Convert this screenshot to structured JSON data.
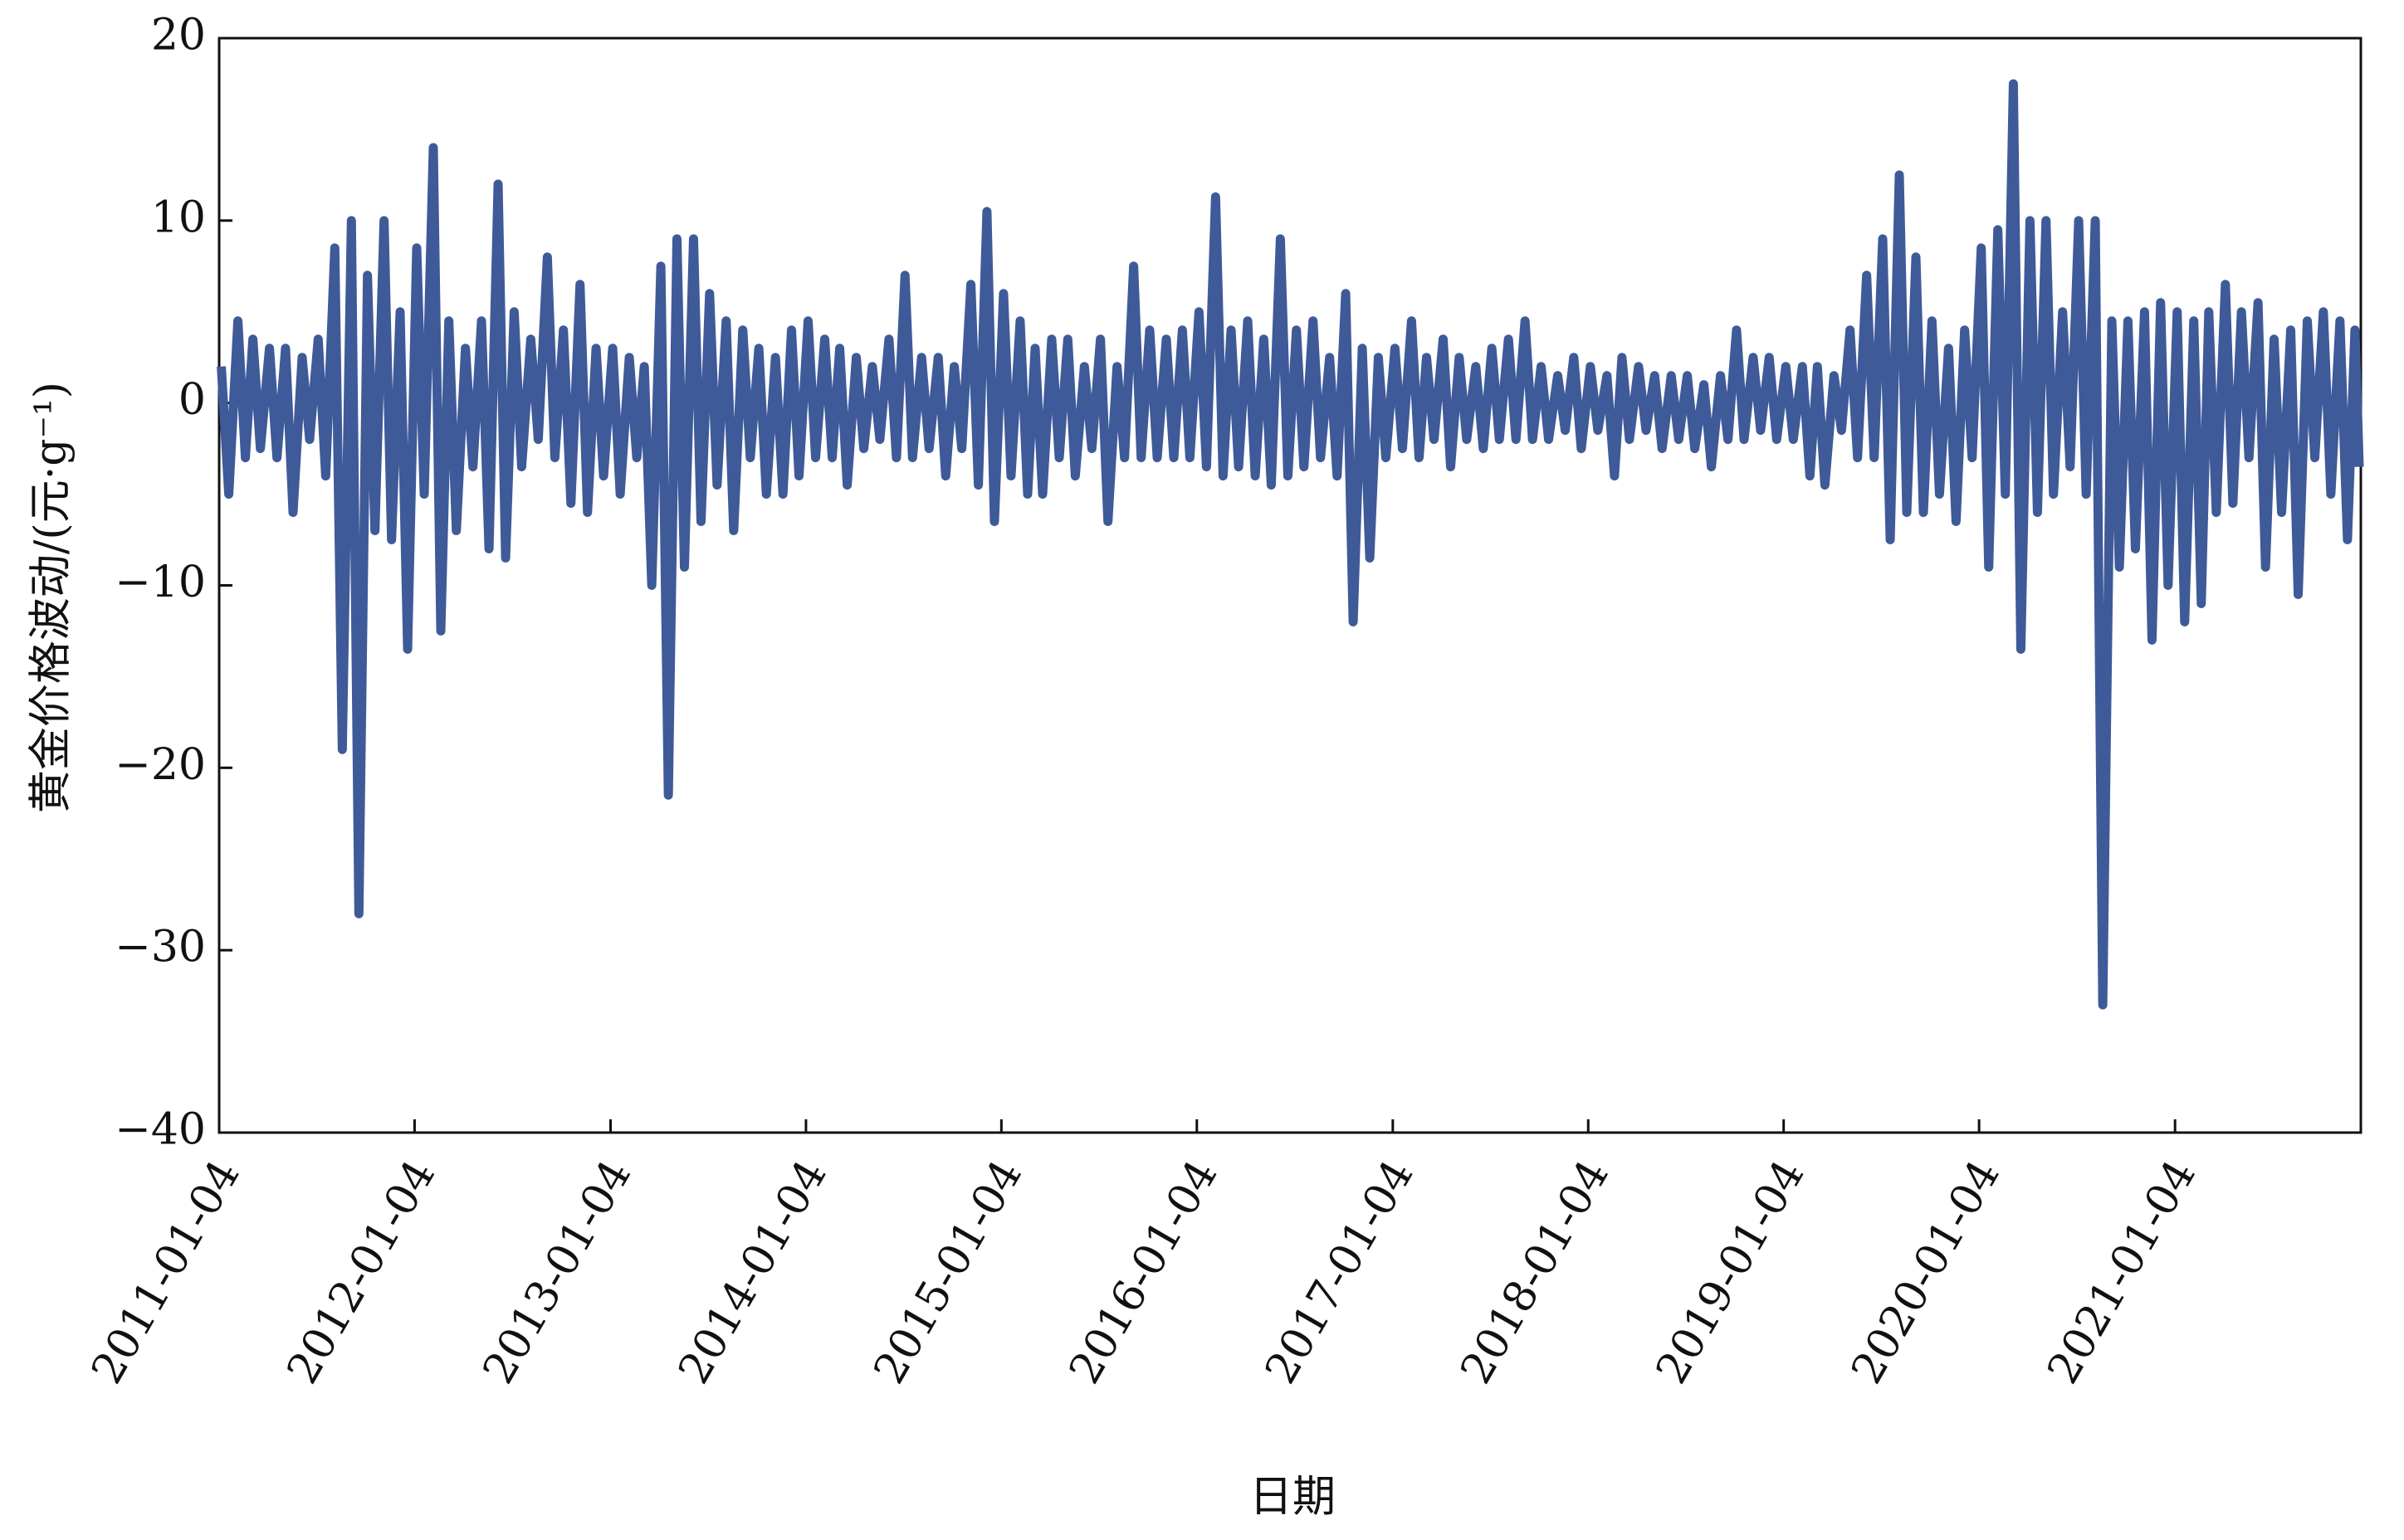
{
  "chart_data": {
    "type": "line",
    "y_label": "黄金价格波动/(元·g⁻¹)",
    "x_label": "日期",
    "xlim": [
      "2011-01-04",
      "2021-12-17"
    ],
    "xticks": [
      "2011-01-04",
      "2012-01-04",
      "2013-01-04",
      "2014-01-04",
      "2015-01-04",
      "2016-01-04",
      "2017-01-04",
      "2018-01-04",
      "2019-01-04",
      "2020-01-04",
      "2021-01-04"
    ],
    "ylim": [
      -40,
      20
    ],
    "yticks": [
      20,
      10,
      0,
      {
        "value": -10,
        "label": "−10"
      },
      {
        "value": -20,
        "label": "−20"
      },
      {
        "value": -30,
        "label": "−30"
      },
      {
        "value": -40,
        "label": "−40"
      }
    ],
    "grid": false,
    "x": [
      "2011-01-08",
      "2011-01-22",
      "2011-02-08",
      "2011-02-22",
      "2011-03-08",
      "2011-03-22",
      "2011-04-08",
      "2011-04-22",
      "2011-05-08",
      "2011-05-22",
      "2011-06-08",
      "2011-06-22",
      "2011-07-08",
      "2011-07-22",
      "2011-08-08",
      "2011-08-22",
      "2011-09-08",
      "2011-09-22",
      "2011-10-08",
      "2011-10-22",
      "2011-11-08",
      "2011-11-22",
      "2011-12-08",
      "2011-12-22",
      "2012-01-08",
      "2012-01-22",
      "2012-02-08",
      "2012-02-22",
      "2012-03-08",
      "2012-03-22",
      "2012-04-08",
      "2012-04-22",
      "2012-05-08",
      "2012-05-22",
      "2012-06-08",
      "2012-06-22",
      "2012-07-08",
      "2012-07-22",
      "2012-08-08",
      "2012-08-22",
      "2012-09-08",
      "2012-09-22",
      "2012-10-08",
      "2012-10-22",
      "2012-11-08",
      "2012-11-22",
      "2012-12-08",
      "2012-12-22",
      "2013-01-08",
      "2013-01-22",
      "2013-02-08",
      "2013-02-22",
      "2013-03-08",
      "2013-03-22",
      "2013-04-08",
      "2013-04-22",
      "2013-05-08",
      "2013-05-22",
      "2013-06-08",
      "2013-06-22",
      "2013-07-08",
      "2013-07-22",
      "2013-08-08",
      "2013-08-22",
      "2013-09-08",
      "2013-09-22",
      "2013-10-08",
      "2013-10-22",
      "2013-11-08",
      "2013-11-22",
      "2013-12-08",
      "2013-12-22",
      "2014-01-08",
      "2014-01-22",
      "2014-02-08",
      "2014-02-22",
      "2014-03-08",
      "2014-03-22",
      "2014-04-08",
      "2014-04-22",
      "2014-05-08",
      "2014-05-22",
      "2014-06-08",
      "2014-06-22",
      "2014-07-08",
      "2014-07-22",
      "2014-08-08",
      "2014-08-22",
      "2014-09-08",
      "2014-09-22",
      "2014-10-08",
      "2014-10-22",
      "2014-11-08",
      "2014-11-22",
      "2014-12-08",
      "2014-12-22",
      "2015-01-08",
      "2015-01-22",
      "2015-02-08",
      "2015-02-22",
      "2015-03-08",
      "2015-03-22",
      "2015-04-08",
      "2015-04-22",
      "2015-05-08",
      "2015-05-22",
      "2015-06-08",
      "2015-06-22",
      "2015-07-08",
      "2015-07-22",
      "2015-08-08",
      "2015-08-22",
      "2015-09-08",
      "2015-09-22",
      "2015-10-08",
      "2015-10-22",
      "2015-11-08",
      "2015-11-22",
      "2015-12-08",
      "2015-12-22",
      "2016-01-08",
      "2016-01-22",
      "2016-02-08",
      "2016-02-22",
      "2016-03-08",
      "2016-03-22",
      "2016-04-08",
      "2016-04-22",
      "2016-05-08",
      "2016-05-22",
      "2016-06-08",
      "2016-06-22",
      "2016-07-08",
      "2016-07-22",
      "2016-08-08",
      "2016-08-22",
      "2016-09-08",
      "2016-09-22",
      "2016-10-08",
      "2016-10-22",
      "2016-11-08",
      "2016-11-22",
      "2016-12-08",
      "2016-12-22",
      "2017-01-08",
      "2017-01-22",
      "2017-02-08",
      "2017-02-22",
      "2017-03-08",
      "2017-03-22",
      "2017-04-08",
      "2017-04-22",
      "2017-05-08",
      "2017-05-22",
      "2017-06-08",
      "2017-06-22",
      "2017-07-08",
      "2017-07-22",
      "2017-08-08",
      "2017-08-22",
      "2017-09-08",
      "2017-09-22",
      "2017-10-08",
      "2017-10-22",
      "2017-11-08",
      "2017-11-22",
      "2017-12-08",
      "2017-12-22",
      "2018-01-08",
      "2018-01-22",
      "2018-02-08",
      "2018-02-22",
      "2018-03-08",
      "2018-03-22",
      "2018-04-08",
      "2018-04-22",
      "2018-05-08",
      "2018-05-22",
      "2018-06-08",
      "2018-06-22",
      "2018-07-08",
      "2018-07-22",
      "2018-08-08",
      "2018-08-22",
      "2018-09-08",
      "2018-09-22",
      "2018-10-08",
      "2018-10-22",
      "2018-11-08",
      "2018-11-22",
      "2018-12-08",
      "2018-12-22",
      "2019-01-08",
      "2019-01-22",
      "2019-02-08",
      "2019-02-22",
      "2019-03-08",
      "2019-03-22",
      "2019-04-08",
      "2019-04-22",
      "2019-05-08",
      "2019-05-22",
      "2019-06-08",
      "2019-06-22",
      "2019-07-08",
      "2019-07-22",
      "2019-08-08",
      "2019-08-22",
      "2019-09-08",
      "2019-09-22",
      "2019-10-08",
      "2019-10-22",
      "2019-11-08",
      "2019-11-22",
      "2019-12-08",
      "2019-12-22",
      "2020-01-08",
      "2020-01-22",
      "2020-02-08",
      "2020-02-22",
      "2020-03-08",
      "2020-03-22",
      "2020-04-08",
      "2020-04-22",
      "2020-05-08",
      "2020-05-22",
      "2020-06-08",
      "2020-06-22",
      "2020-07-08",
      "2020-07-22",
      "2020-08-08",
      "2020-08-22",
      "2020-09-08",
      "2020-09-22",
      "2020-10-08",
      "2020-10-22",
      "2020-11-08",
      "2020-11-22",
      "2020-12-08",
      "2020-12-22",
      "2021-01-08",
      "2021-01-22",
      "2021-02-08",
      "2021-02-22",
      "2021-03-08",
      "2021-03-22",
      "2021-04-08",
      "2021-04-22",
      "2021-05-08",
      "2021-05-22",
      "2021-06-08",
      "2021-06-22",
      "2021-07-08",
      "2021-07-22",
      "2021-08-08",
      "2021-08-22",
      "2021-09-08",
      "2021-09-22",
      "2021-10-08",
      "2021-10-22",
      "2021-11-08",
      "2021-11-22",
      "2021-12-06",
      "2021-12-14"
    ],
    "series": [
      {
        "color": "#3f5a98",
        "values": [
          2,
          -5,
          4.5,
          -3,
          3.5,
          -2.5,
          3,
          -3,
          3,
          -6,
          2.5,
          -2,
          3.5,
          -4,
          8.5,
          -19,
          10,
          -28,
          7,
          -7,
          10,
          -7.5,
          5,
          -13.5,
          8.5,
          -5,
          14,
          -12.5,
          4.5,
          -7,
          3,
          -3.5,
          4.5,
          -8,
          12,
          -8.5,
          5,
          -3.5,
          3.5,
          -2,
          8,
          -3,
          4,
          -5.5,
          6.5,
          -6,
          3,
          -4,
          3,
          -5,
          2.5,
          -3,
          2,
          -10,
          7.5,
          -21.5,
          9,
          -9,
          9,
          -6.5,
          6,
          -4.5,
          4.5,
          -7,
          4,
          -3,
          3,
          -5,
          2.5,
          -5,
          4,
          -4,
          4.5,
          -3,
          3.5,
          -3,
          3,
          -4.5,
          2.5,
          -2.5,
          2,
          -2,
          3.5,
          -3,
          7,
          -3,
          2.5,
          -2.5,
          2.5,
          -4,
          2,
          -2.5,
          6.5,
          -4.5,
          10.5,
          -6.5,
          6,
          -4,
          4.5,
          -5,
          3,
          -5,
          3.5,
          -3,
          3.5,
          -4,
          2,
          -2.5,
          3.5,
          -6.5,
          2,
          -3,
          7.5,
          -3,
          4,
          -3,
          3.5,
          -3,
          4,
          -3,
          5,
          -3.5,
          11.3,
          -4,
          4,
          -3.5,
          4.5,
          -4,
          3.5,
          -4.5,
          9,
          -4,
          4,
          -3.5,
          4.5,
          -3,
          2.5,
          -4,
          6,
          -12,
          3,
          -8.5,
          2.5,
          -3,
          3,
          -2.5,
          4.5,
          -3,
          2.5,
          -2,
          3.5,
          -3.5,
          2.5,
          -2,
          2,
          -2.5,
          3,
          -2,
          3.5,
          -2,
          4.5,
          -2,
          2,
          -2,
          1.5,
          -1.5,
          2.5,
          -2.5,
          2,
          -1.5,
          1.5,
          -4,
          2.5,
          -2,
          2,
          -1.5,
          1.5,
          -2.5,
          1.5,
          -2,
          1.5,
          -2.5,
          1,
          -3.5,
          1.5,
          -2,
          4,
          -2,
          2.5,
          -1.5,
          2.5,
          -2,
          2,
          -2,
          2,
          -4,
          2,
          -4.5,
          1.5,
          -1.5,
          4,
          -3,
          7,
          -3,
          9,
          -7.5,
          12.5,
          -6,
          8,
          -6,
          4.5,
          -5,
          3,
          -6.5,
          4,
          -3,
          8.5,
          -9,
          9.5,
          -5,
          17.5,
          -13.5,
          10,
          -6,
          10,
          -5,
          5,
          -3.5,
          10,
          -5,
          10,
          -33,
          4.5,
          -9,
          4.5,
          -8,
          5,
          -13,
          5.5,
          -10,
          5,
          -12,
          4.5,
          -11,
          5,
          -6,
          6.5,
          -5.5,
          5,
          -3,
          5.5,
          -9,
          3.5,
          -6,
          4,
          -10.5,
          4.5,
          -3,
          5,
          -5,
          4.5,
          -7.5,
          4,
          -3.5
        ]
      }
    ]
  }
}
